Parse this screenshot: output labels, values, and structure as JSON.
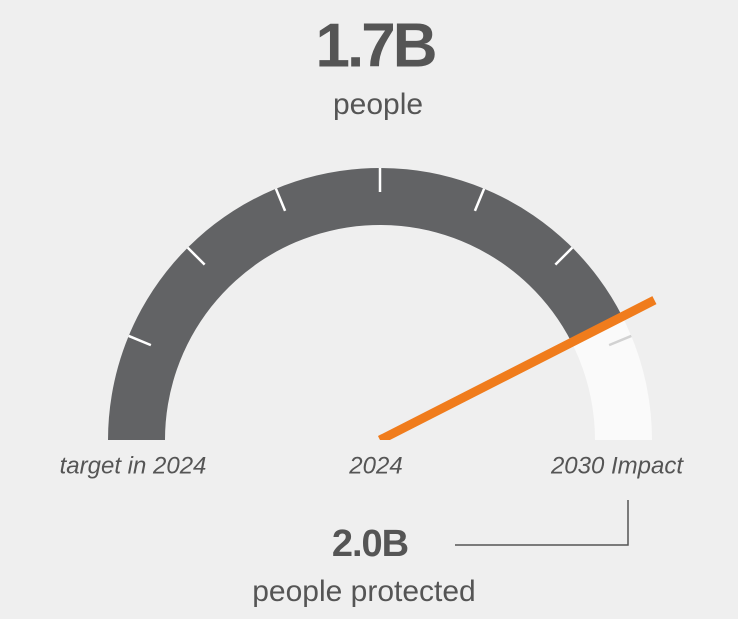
{
  "chart_data": {
    "type": "gauge",
    "value": 1.7,
    "value_label": "1.7B",
    "unit": "people",
    "min": 0,
    "max": 2.0,
    "max_label": "2.0B",
    "max_unit": "people protected",
    "ticks": [
      0.25,
      0.5,
      0.75,
      1.0,
      1.25,
      1.5,
      1.75
    ],
    "labels": [
      "target in 2024",
      "2024",
      "2030 Impact"
    ],
    "colors": {
      "fill": "#626365",
      "track": "#fafafa",
      "needle": "#f07c1c",
      "tick": "#ffffff",
      "tick_on_track": "#d2d2d2",
      "connector": "#555555"
    }
  }
}
